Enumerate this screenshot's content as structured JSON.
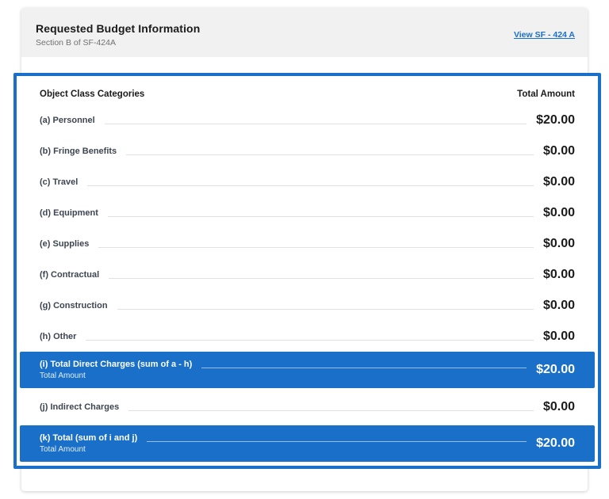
{
  "header": {
    "title": "Requested Budget Information",
    "subtitle": "Section B of SF-424A",
    "link_label": "View SF - 424 A"
  },
  "table": {
    "col_categories": "Object Class Categories",
    "col_amount": "Total Amount",
    "rows": [
      {
        "label": "(a) Personnel",
        "amount": "$20.00",
        "type": "normal"
      },
      {
        "label": "(b) Fringe Benefits",
        "amount": "$0.00",
        "type": "normal"
      },
      {
        "label": "(c) Travel",
        "amount": "$0.00",
        "type": "normal"
      },
      {
        "label": "(d) Equipment",
        "amount": "$0.00",
        "type": "normal"
      },
      {
        "label": "(e) Supplies",
        "amount": "$0.00",
        "type": "normal"
      },
      {
        "label": "(f) Contractual",
        "amount": "$0.00",
        "type": "normal"
      },
      {
        "label": "(g) Construction",
        "amount": "$0.00",
        "type": "normal"
      },
      {
        "label": "(h) Other",
        "amount": "$0.00",
        "type": "normal"
      },
      {
        "label": "(i) Total Direct Charges (sum of a - h)",
        "sublabel": "Total Amount",
        "amount": "$20.00",
        "type": "total"
      },
      {
        "label": "(j) Indirect Charges",
        "amount": "$0.00",
        "type": "normal"
      },
      {
        "label": "(k) Total (sum of i and j)",
        "sublabel": "Total Amount",
        "amount": "$20.00",
        "type": "total"
      }
    ]
  },
  "colors": {
    "accent_blue": "#1a70c8",
    "link_blue": "#1a6fc9",
    "header_gray": "#f1f1f1",
    "leader_gray": "#dfe1e2",
    "text_dark": "#1b1b1b",
    "label_gray": "#3d4551"
  }
}
